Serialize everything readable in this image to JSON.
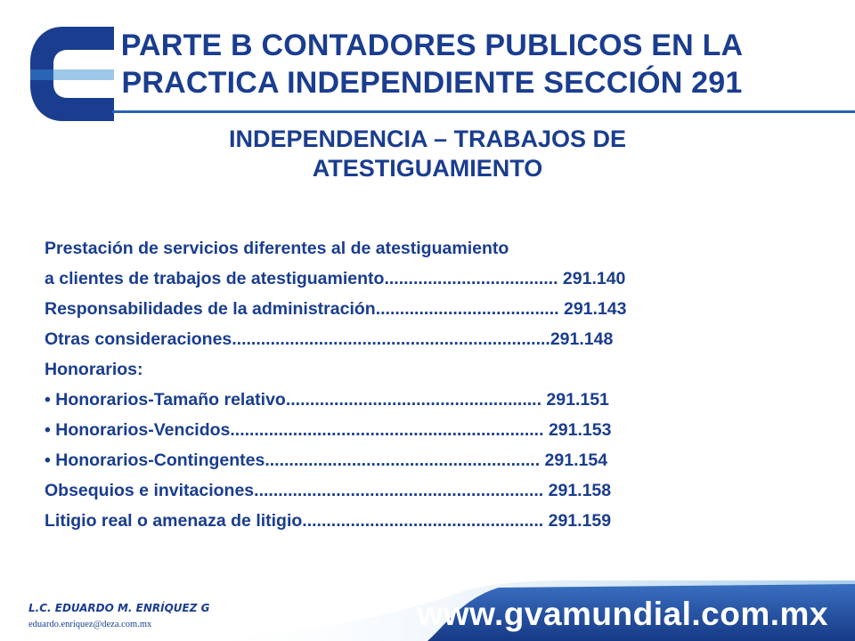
{
  "slide": {
    "title_line1": "PARTE B CONTADORES PUBLICOS EN LA",
    "title_line2": "PRACTICA INDEPENDIENTE SECCIÓN 291",
    "subtitle_line1": "INDEPENDENCIA – TRABAJOS DE",
    "subtitle_line2": "ATESTIGUAMIENTO",
    "content_lines": [
      "Prestación de servicios diferentes al de atestiguamiento",
      "a clientes de trabajos de atestiguamiento.................................... 291.140",
      "Responsabilidades de la administración...................................... 291.143",
      "Otras consideraciones..................................................................291.148",
      "Honorarios:",
      "• Honorarios-Tamaño relativo..................................................... 291.151",
      "• Honorarios-Vencidos................................................................. 291.153",
      "• Honorarios-Contingentes......................................................... 291.154",
      "Obsequios e invitaciones............................................................ 291.158",
      "Litigio real o amenaza de litigio.................................................. 291.159"
    ]
  },
  "footer": {
    "url": "www.gvamundial.com.mx",
    "author": "L.C. EDUARDO M. ENRÍQUEZ G",
    "email": "eduardo.enriquez@deza.com.mx"
  },
  "colors": {
    "brand_blue": "#1a3d8f",
    "footer_blue": "#1e4a9a",
    "logo_light": "#9ec7e8"
  }
}
